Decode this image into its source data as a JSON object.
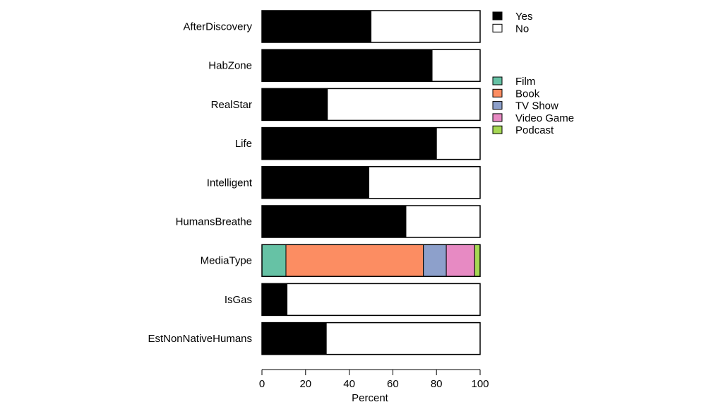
{
  "chart_data": {
    "type": "bar",
    "orientation": "horizontal",
    "stacked": true,
    "xlabel": "Percent",
    "xlim": [
      0,
      100
    ],
    "xticks": [
      "0",
      "20",
      "40",
      "60",
      "80",
      "100"
    ],
    "categories": [
      "AfterDiscovery",
      "HabZone",
      "RealStar",
      "Life",
      "Intelligent",
      "HumansBreathe",
      "MediaType",
      "IsGas",
      "EstNonNativeHumans"
    ],
    "legend_yes_no": {
      "placement": "top-right",
      "entries": [
        {
          "label": "Yes",
          "color": "#000000"
        },
        {
          "label": "No",
          "color": "#ffffff"
        }
      ]
    },
    "legend_media": {
      "placement": "right",
      "entries": [
        {
          "label": "Film",
          "color": "#66c2a5"
        },
        {
          "label": "Book",
          "color": "#fc8d62"
        },
        {
          "label": "TV Show",
          "color": "#8da0cb"
        },
        {
          "label": "Video Game",
          "color": "#e78ac3"
        },
        {
          "label": "Podcast",
          "color": "#a6d854"
        }
      ]
    },
    "bars": [
      {
        "category": "AfterDiscovery",
        "segments": [
          {
            "label": "Yes",
            "value": 50,
            "color": "#000000"
          },
          {
            "label": "No",
            "value": 50,
            "color": "#ffffff"
          }
        ]
      },
      {
        "category": "HabZone",
        "segments": [
          {
            "label": "Yes",
            "value": 78,
            "color": "#000000"
          },
          {
            "label": "No",
            "value": 22,
            "color": "#ffffff"
          }
        ]
      },
      {
        "category": "RealStar",
        "segments": [
          {
            "label": "Yes",
            "value": 30,
            "color": "#000000"
          },
          {
            "label": "No",
            "value": 70,
            "color": "#ffffff"
          }
        ]
      },
      {
        "category": "Life",
        "segments": [
          {
            "label": "Yes",
            "value": 80,
            "color": "#000000"
          },
          {
            "label": "No",
            "value": 20,
            "color": "#ffffff"
          }
        ]
      },
      {
        "category": "Intelligent",
        "segments": [
          {
            "label": "Yes",
            "value": 49,
            "color": "#000000"
          },
          {
            "label": "No",
            "value": 51,
            "color": "#ffffff"
          }
        ]
      },
      {
        "category": "HumansBreathe",
        "segments": [
          {
            "label": "Yes",
            "value": 66,
            "color": "#000000"
          },
          {
            "label": "No",
            "value": 34,
            "color": "#ffffff"
          }
        ]
      },
      {
        "category": "MediaType",
        "segments": [
          {
            "label": "Film",
            "value": 11,
            "color": "#66c2a5"
          },
          {
            "label": "Book",
            "value": 63,
            "color": "#fc8d62"
          },
          {
            "label": "TV Show",
            "value": 10.5,
            "color": "#8da0cb"
          },
          {
            "label": "Video Game",
            "value": 13,
            "color": "#e78ac3"
          },
          {
            "label": "Podcast",
            "value": 2.5,
            "color": "#a6d854"
          }
        ]
      },
      {
        "category": "IsGas",
        "segments": [
          {
            "label": "Yes",
            "value": 11.5,
            "color": "#000000"
          },
          {
            "label": "No",
            "value": 88.5,
            "color": "#ffffff"
          }
        ]
      },
      {
        "category": "EstNonNativeHumans",
        "segments": [
          {
            "label": "Yes",
            "value": 29.5,
            "color": "#000000"
          },
          {
            "label": "No",
            "value": 70.5,
            "color": "#ffffff"
          }
        ]
      }
    ]
  }
}
